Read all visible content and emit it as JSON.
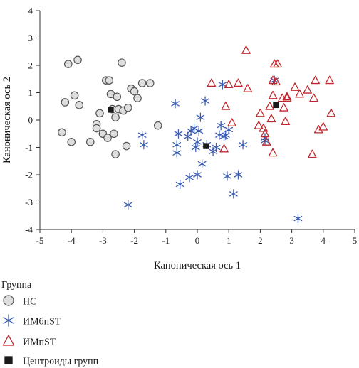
{
  "chart_data": {
    "type": "scatter",
    "xlabel": "Каноническая ось 1",
    "ylabel": "Каноническая ось 2",
    "xlim": [
      -5,
      5
    ],
    "ylim": [
      -4,
      4
    ],
    "xticks": [
      "-5",
      "-4",
      "-3",
      "-2",
      "-1",
      "0",
      "1",
      "2",
      "3",
      "4",
      "5"
    ],
    "yticks": [
      "-4",
      "-3",
      "-2",
      "-1",
      "0",
      "1",
      "2",
      "3",
      "4"
    ],
    "legend_title": "Группа",
    "legend_position": "bottom",
    "series": [
      {
        "name": "НС",
        "marker": "circle",
        "color": "#555555",
        "fill": "#dddddd",
        "points": [
          [
            -4.3,
            -0.45
          ],
          [
            -4.1,
            2.05
          ],
          [
            -4.0,
            -0.8
          ],
          [
            -3.9,
            0.9
          ],
          [
            -3.8,
            2.2
          ],
          [
            -3.75,
            0.55
          ],
          [
            -3.4,
            -0.8
          ],
          [
            -3.2,
            -0.15
          ],
          [
            -3.2,
            -0.3
          ],
          [
            -3.1,
            0.25
          ],
          [
            -3.0,
            -0.5
          ],
          [
            -2.9,
            1.45
          ],
          [
            -2.85,
            -0.65
          ],
          [
            -2.8,
            1.45
          ],
          [
            -2.75,
            0.95
          ],
          [
            -2.7,
            0.4
          ],
          [
            -2.65,
            -0.5
          ],
          [
            -2.6,
            -1.25
          ],
          [
            -2.55,
            0.85
          ],
          [
            -2.5,
            0.4
          ],
          [
            -2.4,
            2.1
          ],
          [
            -2.35,
            0.35
          ],
          [
            -2.25,
            -0.95
          ],
          [
            -2.2,
            0.45
          ],
          [
            -2.1,
            1.15
          ],
          [
            -2.0,
            1.05
          ],
          [
            -1.9,
            0.8
          ],
          [
            -1.75,
            1.35
          ],
          [
            -1.5,
            1.35
          ],
          [
            -1.25,
            -0.2
          ],
          [
            -4.2,
            0.65
          ],
          [
            -2.6,
            0.1
          ]
        ]
      },
      {
        "name": "ИМбпST",
        "marker": "star",
        "color": "#3d5db0",
        "points": [
          [
            -2.2,
            -3.1
          ],
          [
            -1.75,
            -0.55
          ],
          [
            -1.7,
            -0.9
          ],
          [
            -0.7,
            0.6
          ],
          [
            -0.65,
            -0.9
          ],
          [
            -0.65,
            -1.2
          ],
          [
            -0.6,
            -0.5
          ],
          [
            -0.55,
            -2.35
          ],
          [
            -0.3,
            -0.6
          ],
          [
            -0.25,
            -2.1
          ],
          [
            -0.2,
            -0.4
          ],
          [
            -0.1,
            -0.3
          ],
          [
            -0.05,
            -1.0
          ],
          [
            0.0,
            -2.0
          ],
          [
            0.0,
            -0.8
          ],
          [
            0.05,
            -0.4
          ],
          [
            0.1,
            0.1
          ],
          [
            0.15,
            -1.6
          ],
          [
            0.25,
            0.7
          ],
          [
            0.3,
            -0.9
          ],
          [
            0.5,
            -1.15
          ],
          [
            0.7,
            -0.55
          ],
          [
            0.75,
            -0.2
          ],
          [
            0.8,
            1.3
          ],
          [
            0.85,
            -0.6
          ],
          [
            0.95,
            -2.05
          ],
          [
            1.0,
            -0.35
          ],
          [
            1.15,
            -2.7
          ],
          [
            1.3,
            -2.0
          ],
          [
            1.45,
            -0.9
          ],
          [
            2.15,
            -0.65
          ],
          [
            2.15,
            -0.75
          ],
          [
            2.45,
            1.45
          ],
          [
            3.2,
            -3.6
          ],
          [
            0.6,
            -1.0
          ],
          [
            0.9,
            -0.55
          ]
        ]
      },
      {
        "name": "ИМпST",
        "marker": "triangle",
        "color": "#c0282e",
        "points": [
          [
            0.45,
            1.35
          ],
          [
            0.85,
            -1.05
          ],
          [
            0.9,
            0.5
          ],
          [
            1.0,
            1.3
          ],
          [
            1.1,
            -0.1
          ],
          [
            1.3,
            1.35
          ],
          [
            1.55,
            2.55
          ],
          [
            1.6,
            1.15
          ],
          [
            1.95,
            -0.2
          ],
          [
            2.0,
            0.25
          ],
          [
            2.1,
            -0.3
          ],
          [
            2.15,
            -0.5
          ],
          [
            2.2,
            -0.8
          ],
          [
            2.3,
            0.5
          ],
          [
            2.35,
            0.05
          ],
          [
            2.4,
            -1.2
          ],
          [
            2.4,
            0.9
          ],
          [
            2.4,
            1.45
          ],
          [
            2.45,
            2.05
          ],
          [
            2.5,
            1.4
          ],
          [
            2.55,
            2.05
          ],
          [
            2.75,
            0.45
          ],
          [
            2.8,
            -0.05
          ],
          [
            2.85,
            0.85
          ],
          [
            2.85,
            0.8
          ],
          [
            3.1,
            1.2
          ],
          [
            3.25,
            0.95
          ],
          [
            3.5,
            1.1
          ],
          [
            3.65,
            -1.25
          ],
          [
            3.7,
            0.8
          ],
          [
            3.75,
            1.45
          ],
          [
            3.85,
            -0.35
          ],
          [
            4.0,
            -0.25
          ],
          [
            4.2,
            1.45
          ],
          [
            4.25,
            0.25
          ],
          [
            2.7,
            0.8
          ]
        ]
      },
      {
        "name": "Центроиды групп",
        "marker": "square",
        "color": "#1a1a1a",
        "points": [
          [
            -2.75,
            0.38
          ],
          [
            0.28,
            -0.95
          ],
          [
            2.5,
            0.55
          ]
        ]
      }
    ]
  }
}
